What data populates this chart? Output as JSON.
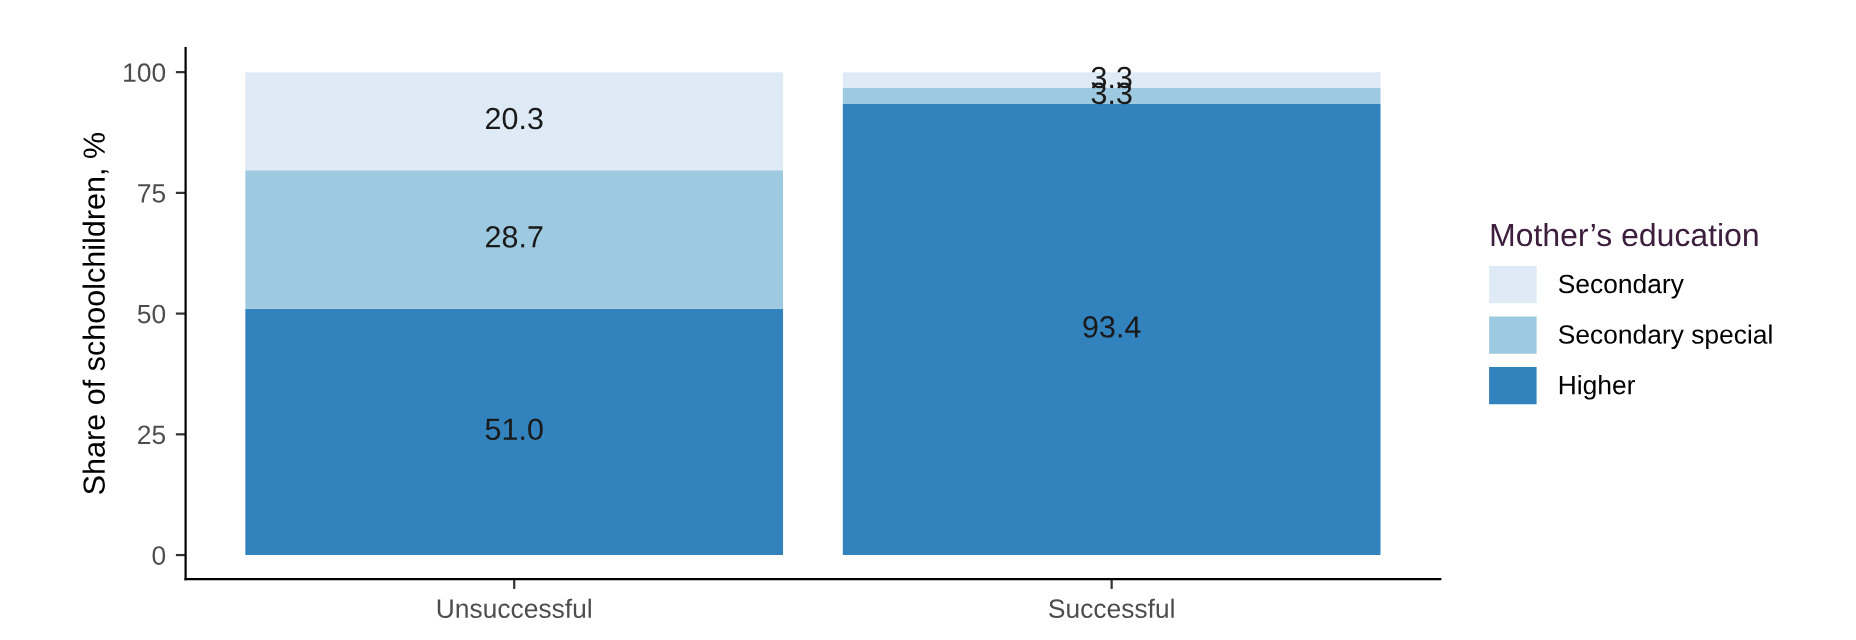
{
  "chart_data": {
    "type": "bar",
    "stacked": true,
    "ylabel": "Share of schoolchildren, %",
    "legend_title": "Mother’s education",
    "categories": [
      "Unsuccessful",
      "Successful"
    ],
    "series": [
      {
        "name": "Higher",
        "color": "#3182bd",
        "values": [
          51.0,
          93.4
        ],
        "value_labels": [
          "51.0",
          "93.4"
        ]
      },
      {
        "name": "Secondary special",
        "color": "#9ecae1",
        "values": [
          28.7,
          3.3
        ],
        "value_labels": [
          "28.7",
          "3.3"
        ]
      },
      {
        "name": "Secondary",
        "color": "#deebf7",
        "values": [
          20.3,
          3.3
        ],
        "value_labels": [
          "20.3",
          "3.3"
        ]
      }
    ],
    "ylim": [
      -5,
      105
    ],
    "yticks": [
      0,
      25,
      50,
      75,
      100
    ],
    "grid": false,
    "legend": "right"
  }
}
